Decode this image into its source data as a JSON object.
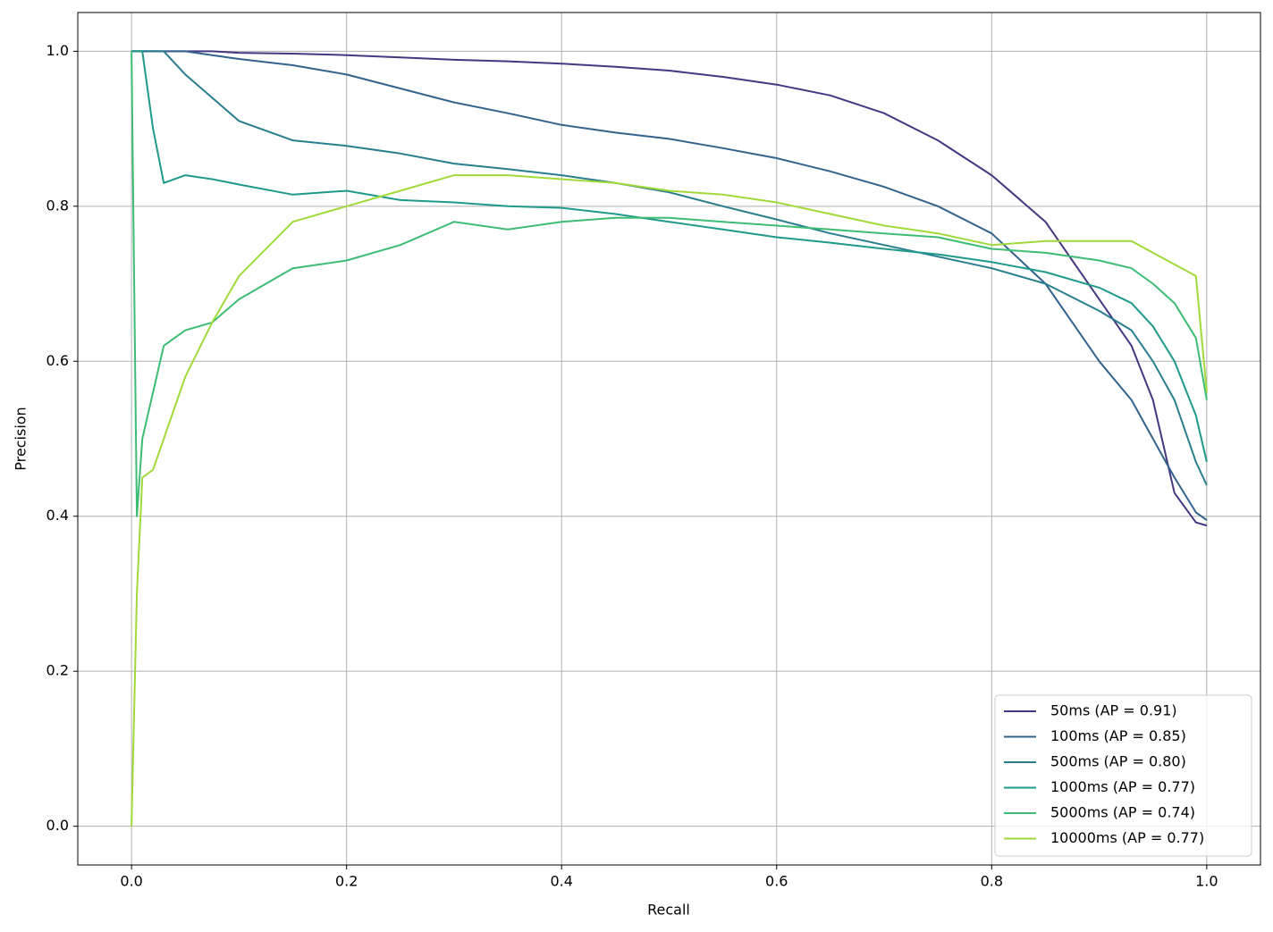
{
  "chart_data": {
    "type": "line",
    "xlabel": "Recall",
    "ylabel": "Precision",
    "x": [
      0,
      0.005,
      0.01,
      0.02,
      0.03,
      0.05,
      0.075,
      0.1,
      0.15,
      0.2,
      0.25,
      0.3,
      0.35,
      0.4,
      0.45,
      0.5,
      0.55,
      0.6,
      0.65,
      0.7,
      0.75,
      0.8,
      0.85,
      0.9,
      0.93,
      0.95,
      0.97,
      0.99,
      1.0
    ],
    "series": [
      {
        "name": "50ms (AP = 0.91)",
        "color": "#453781",
        "values": [
          1,
          1,
          1,
          1,
          1,
          1,
          1,
          0.998,
          0.997,
          0.995,
          0.992,
          0.989,
          0.987,
          0.984,
          0.98,
          0.975,
          0.967,
          0.957,
          0.943,
          0.92,
          0.885,
          0.84,
          0.78,
          0.68,
          0.62,
          0.55,
          0.43,
          0.392,
          0.388
        ]
      },
      {
        "name": "100ms (AP = 0.85)",
        "color": "#33638d",
        "values": [
          1,
          1,
          1,
          1,
          1,
          1,
          0.995,
          0.99,
          0.982,
          0.97,
          0.952,
          0.934,
          0.92,
          0.905,
          0.895,
          0.887,
          0.875,
          0.862,
          0.845,
          0.825,
          0.8,
          0.765,
          0.7,
          0.6,
          0.55,
          0.5,
          0.45,
          0.405,
          0.395
        ]
      },
      {
        "name": "500ms (AP = 0.80)",
        "color": "#287d8e",
        "values": [
          1,
          1,
          1,
          1,
          1,
          0.97,
          0.94,
          0.91,
          0.885,
          0.878,
          0.868,
          0.855,
          0.848,
          0.84,
          0.83,
          0.818,
          0.8,
          0.783,
          0.765,
          0.75,
          0.735,
          0.72,
          0.7,
          0.665,
          0.64,
          0.6,
          0.55,
          0.47,
          0.44
        ]
      },
      {
        "name": "1000ms (AP = 0.77)",
        "color": "#1f9a8a",
        "values": [
          1,
          1,
          1,
          0.9,
          0.83,
          0.84,
          0.835,
          0.828,
          0.815,
          0.82,
          0.808,
          0.805,
          0.8,
          0.798,
          0.79,
          0.78,
          0.77,
          0.76,
          0.753,
          0.745,
          0.738,
          0.728,
          0.715,
          0.695,
          0.675,
          0.645,
          0.6,
          0.53,
          0.47
        ]
      },
      {
        "name": "5000ms (AP = 0.74)",
        "color": "#3dbc74",
        "values": [
          1,
          0.4,
          0.5,
          0.56,
          0.62,
          0.64,
          0.65,
          0.68,
          0.72,
          0.73,
          0.75,
          0.78,
          0.77,
          0.78,
          0.785,
          0.785,
          0.78,
          0.775,
          0.77,
          0.765,
          0.76,
          0.745,
          0.74,
          0.73,
          0.72,
          0.7,
          0.675,
          0.63,
          0.55
        ]
      },
      {
        "name": "10000ms (AP = 0.77)",
        "color": "#a0da39",
        "values": [
          0,
          0.3,
          0.45,
          0.46,
          0.5,
          0.58,
          0.65,
          0.71,
          0.78,
          0.8,
          0.82,
          0.84,
          0.84,
          0.835,
          0.83,
          0.82,
          0.815,
          0.805,
          0.79,
          0.775,
          0.765,
          0.75,
          0.755,
          0.755,
          0.755,
          0.74,
          0.725,
          0.71,
          0.56
        ]
      }
    ],
    "xlim": [
      -0.05,
      1.05
    ],
    "ylim": [
      -0.05,
      1.05
    ],
    "xticks": [
      {
        "value": 0,
        "label": "0.0"
      },
      0.2,
      0.4,
      0.6,
      0.8,
      {
        "value": 1,
        "label": "1.0"
      }
    ],
    "yticks": [
      {
        "value": 0,
        "label": "0.0"
      },
      0.2,
      0.4,
      0.6,
      0.8,
      {
        "value": 1,
        "label": "1.0"
      }
    ],
    "grid": true,
    "legend": "lower right"
  }
}
